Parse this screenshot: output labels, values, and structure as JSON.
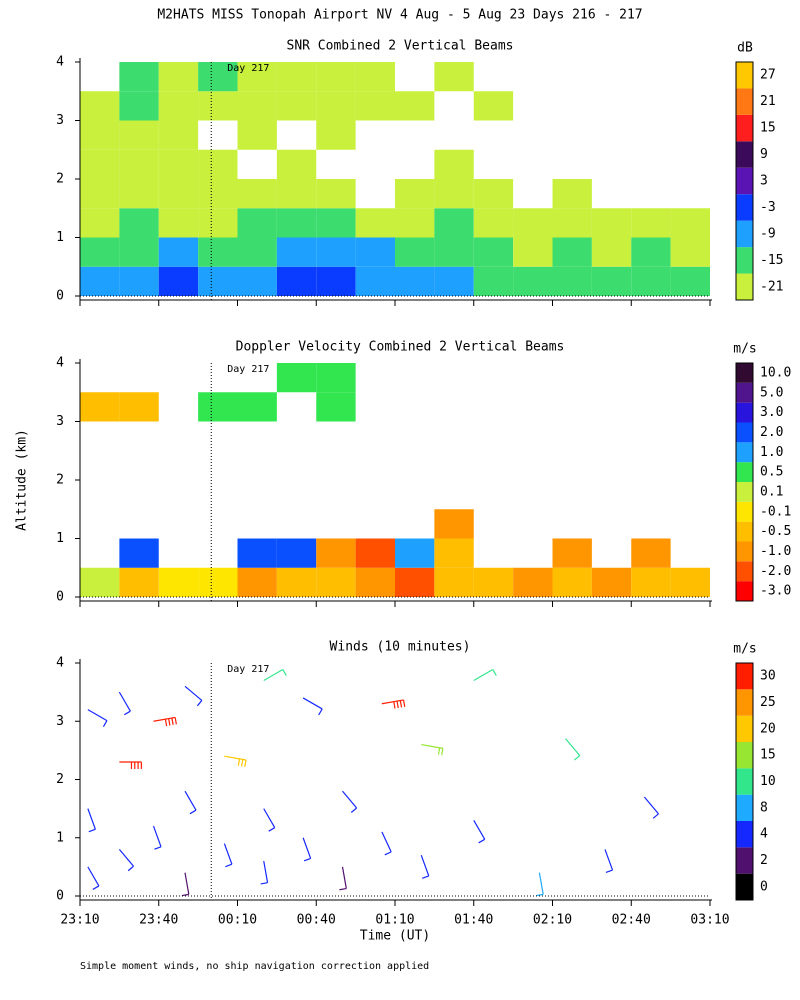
{
  "title": "M2HATS MISS Tonopah Airport NV   4 Aug -  5 Aug 23 Days 216 - 217",
  "y_label": "Altitude (km)",
  "x_label": "Time (UT)",
  "footnote": "Simple moment winds, no ship navigation correction applied",
  "chart_data": [
    {
      "type": "heatmap",
      "title": "SNR Combined 2 Vertical Beams",
      "unit": "dB",
      "annotation": "Day 217",
      "marker_x": 50,
      "xlim": [
        0,
        240
      ],
      "ylim": [
        0,
        4
      ],
      "yticks": [
        0,
        1,
        2,
        3,
        4
      ],
      "xticks": [
        0,
        30,
        60,
        90,
        120,
        150,
        180,
        210,
        240
      ],
      "x": [
        0,
        15,
        30,
        45,
        60,
        75,
        90,
        105,
        120,
        135,
        150,
        165,
        180,
        195,
        210,
        225
      ],
      "y": [
        0,
        0.5,
        1,
        1.5,
        2,
        2.5,
        3,
        3.5
      ],
      "z": [
        [
          -9,
          -9,
          -3,
          -9,
          -9,
          -3,
          -3,
          -9,
          -9,
          -9,
          -15,
          -15,
          -15,
          -15,
          -15,
          -15
        ],
        [
          -15,
          -15,
          -9,
          -15,
          -15,
          -9,
          -9,
          -9,
          -15,
          -15,
          -15,
          -21,
          -15,
          -21,
          -15,
          -21
        ],
        [
          -21,
          -15,
          -21,
          -21,
          -15,
          -15,
          -15,
          -21,
          -21,
          -15,
          -21,
          -21,
          -21,
          -21,
          -21,
          -21
        ],
        [
          -21,
          -21,
          -21,
          -21,
          -21,
          -21,
          -21,
          null,
          -21,
          -21,
          -21,
          null,
          -21,
          null,
          null,
          null
        ],
        [
          -21,
          -21,
          -21,
          -21,
          null,
          -21,
          null,
          null,
          null,
          -21,
          null,
          null,
          null,
          null,
          null,
          null
        ],
        [
          -21,
          -21,
          -21,
          null,
          -21,
          null,
          -21,
          null,
          null,
          null,
          null,
          null,
          null,
          null,
          null,
          null
        ],
        [
          -21,
          -15,
          -21,
          -21,
          -21,
          -21,
          -21,
          -21,
          -21,
          null,
          -21,
          null,
          null,
          null,
          null,
          null
        ],
        [
          null,
          -15,
          -21,
          -15,
          -21,
          -21,
          -21,
          -21,
          null,
          -21,
          null,
          null,
          null,
          null,
          null,
          null
        ]
      ],
      "colorbar": {
        "levels": [
          -21,
          -15,
          -9,
          -3,
          3,
          9,
          15,
          21,
          27
        ],
        "colors": [
          "#c8f03c",
          "#3cdc6e",
          "#1ea0ff",
          "#0a3cff",
          "#5a14b4",
          "#3c0a5a",
          "#ff1e1e",
          "#ff7814",
          "#ffc800"
        ]
      }
    },
    {
      "type": "heatmap",
      "title": "Doppler Velocity Combined 2 Vertical Beams",
      "unit": "m/s",
      "annotation": "Day 217",
      "marker_x": 50,
      "xlim": [
        0,
        240
      ],
      "ylim": [
        0,
        4
      ],
      "yticks": [
        0,
        1,
        2,
        3,
        4
      ],
      "xticks": [
        0,
        30,
        60,
        90,
        120,
        150,
        180,
        210,
        240
      ],
      "x": [
        0,
        15,
        30,
        45,
        60,
        75,
        90,
        105,
        120,
        135,
        150,
        165,
        180,
        195,
        210,
        225
      ],
      "y": [
        0,
        0.5,
        1,
        1.5,
        2,
        2.5,
        3,
        3.5
      ],
      "z": [
        [
          0.1,
          -0.5,
          -0.1,
          -0.1,
          -1,
          -0.5,
          -0.5,
          -1,
          -2,
          -0.5,
          -0.5,
          -1,
          -0.5,
          -1,
          -0.5,
          -0.5
        ],
        [
          null,
          2,
          null,
          null,
          2,
          2,
          -1,
          -2,
          1,
          -0.5,
          null,
          null,
          -1,
          null,
          -1,
          null
        ],
        [
          null,
          null,
          null,
          null,
          null,
          null,
          null,
          null,
          null,
          -1,
          null,
          null,
          null,
          null,
          null,
          null
        ],
        [
          null,
          null,
          null,
          null,
          null,
          null,
          null,
          null,
          null,
          null,
          null,
          null,
          null,
          null,
          null,
          null
        ],
        [
          null,
          null,
          null,
          null,
          null,
          null,
          null,
          null,
          null,
          null,
          null,
          null,
          null,
          null,
          null,
          null
        ],
        [
          null,
          null,
          null,
          null,
          null,
          null,
          null,
          null,
          null,
          null,
          null,
          null,
          null,
          null,
          null,
          null
        ],
        [
          -0.5,
          -0.5,
          null,
          0.5,
          0.5,
          null,
          0.5,
          null,
          null,
          null,
          null,
          null,
          null,
          null,
          null,
          null
        ],
        [
          null,
          null,
          null,
          null,
          null,
          0.5,
          0.5,
          null,
          null,
          null,
          null,
          null,
          null,
          null,
          null,
          null
        ]
      ],
      "colorbar": {
        "levels": [
          {
            "value": -3,
            "label": "-3.0"
          },
          {
            "value": -2,
            "label": "-2.0"
          },
          {
            "value": -1,
            "label": "-1.0"
          },
          -0.5,
          -0.1,
          0.1,
          0.5,
          {
            "value": 1,
            "label": "1.0"
          },
          {
            "value": 2,
            "label": "2.0"
          },
          {
            "value": 3,
            "label": "3.0"
          },
          {
            "value": 5,
            "label": "5.0"
          },
          {
            "value": 10,
            "label": "10.0"
          }
        ],
        "colors": [
          "#ff0000",
          "#ff5000",
          "#ff9600",
          "#ffbe00",
          "#ffe600",
          "#c8f03c",
          "#32e650",
          "#1ea0ff",
          "#0a50ff",
          "#2814dc",
          "#50148c",
          "#300a30"
        ]
      }
    },
    {
      "type": "barbs",
      "title": "Winds (10 minutes)",
      "unit": "m/s",
      "annotation": "Day 217",
      "marker_x": 50,
      "xlim": [
        0,
        240
      ],
      "ylim": [
        0,
        4
      ],
      "yticks": [
        0,
        1,
        2,
        3,
        4
      ],
      "xticks": [
        {
          "value": 0,
          "label": "23:10"
        },
        {
          "value": 30,
          "label": "23:40"
        },
        {
          "value": 60,
          "label": "00:10"
        },
        {
          "value": 90,
          "label": "00:40"
        },
        {
          "value": 120,
          "label": "01:10"
        },
        {
          "value": 150,
          "label": "01:40"
        },
        {
          "value": 180,
          "label": "02:10"
        },
        {
          "value": 210,
          "label": "02:40"
        },
        {
          "value": 240,
          "label": "03:10"
        }
      ],
      "x": [
        3,
        3,
        3,
        15,
        15,
        15,
        28,
        28,
        40,
        40,
        40,
        55,
        55,
        70,
        70,
        70,
        85,
        85,
        100,
        100,
        115,
        115,
        130,
        130,
        150,
        150,
        175,
        185,
        200,
        215
      ],
      "y": [
        0.5,
        1.5,
        3.2,
        0.8,
        2.3,
        3.5,
        1.2,
        3.0,
        0.4,
        1.8,
        3.6,
        0.9,
        2.4,
        0.6,
        1.5,
        3.7,
        1.0,
        3.4,
        0.5,
        1.8,
        1.1,
        3.3,
        0.7,
        2.6,
        1.3,
        3.7,
        0.4,
        2.7,
        0.8,
        1.7
      ],
      "speed": [
        4,
        6,
        4,
        4,
        30,
        4,
        6,
        30,
        2,
        4,
        4,
        4,
        20,
        4,
        6,
        10,
        4,
        4,
        2,
        4,
        6,
        30,
        4,
        15,
        6,
        10,
        8,
        10,
        4,
        4
      ],
      "direction": [
        150,
        160,
        120,
        140,
        90,
        150,
        160,
        80,
        170,
        150,
        130,
        160,
        100,
        170,
        150,
        60,
        160,
        120,
        170,
        140,
        155,
        80,
        160,
        100,
        150,
        60,
        170,
        140,
        160,
        140
      ],
      "colorbar": {
        "levels": [
          0,
          2,
          4,
          8,
          10,
          15,
          20,
          25,
          30
        ],
        "colors": [
          "#000000",
          "#50106e",
          "#1428ff",
          "#1eaaff",
          "#32e68c",
          "#96e632",
          "#ffc800",
          "#ff9600",
          "#ff1e00"
        ]
      }
    }
  ]
}
